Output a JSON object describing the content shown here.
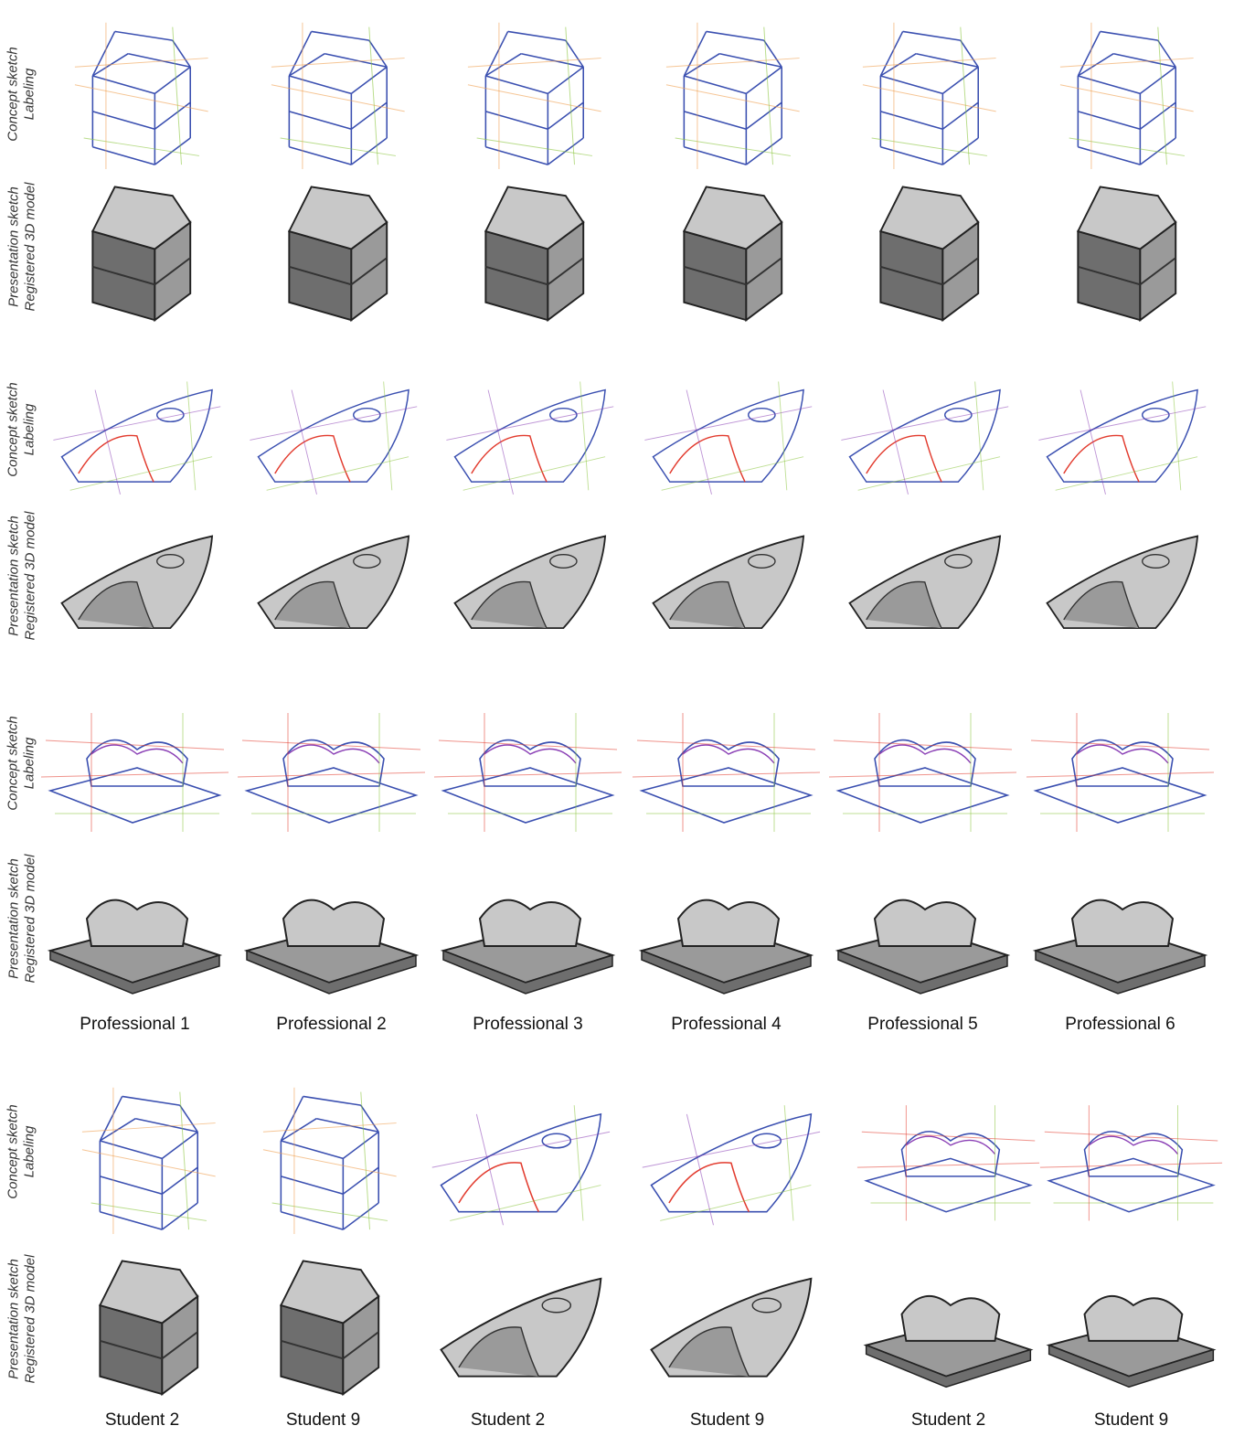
{
  "row_labels": {
    "concept": [
      "Concept sketch",
      "Labeling"
    ],
    "presentation": [
      "Presentation sketch",
      "Registered 3D model"
    ]
  },
  "professional_labels": [
    "Professional 1",
    "Professional 2",
    "Professional 3",
    "Professional 4",
    "Professional 5",
    "Professional 6"
  ],
  "student_labels": [
    "Student 2",
    "Student 9",
    "Student 2",
    "Student 9",
    "Student 2",
    "Student 9"
  ],
  "colors": {
    "blue": "#3a4fb0",
    "green": "#8cc63f",
    "red": "#e23b2e",
    "purple": "#8a3fb5",
    "orange": "#f0a050",
    "shade_dark": "#6e6e6e",
    "shade_mid": "#9a9a9a",
    "shade_light": "#c8c8c8"
  }
}
